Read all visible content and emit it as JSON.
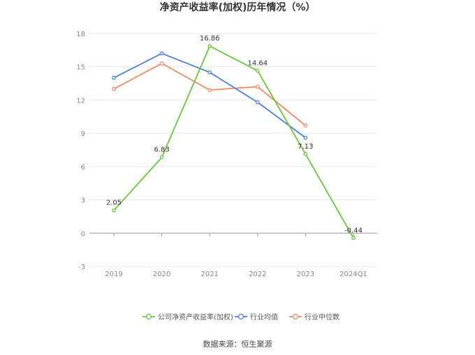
{
  "chart_data": {
    "type": "line",
    "title": "净资产收益率(加权)历年情况（%）",
    "categories": [
      "2019",
      "2020",
      "2021",
      "2022",
      "2023",
      "2024Q1"
    ],
    "y_ticks": [
      18,
      15,
      12,
      9,
      6,
      3,
      0,
      -3
    ],
    "ylim": [
      -3,
      18
    ],
    "grid": true,
    "legend_position": "bottom",
    "series": [
      {
        "name": "公司净资产收益率(加权)",
        "color": "#6cc63a",
        "values": [
          2.05,
          6.83,
          16.86,
          14.64,
          7.13,
          -0.44
        ],
        "labels": [
          "2.05",
          "6.83",
          "16.86",
          "14.64",
          "7.13",
          "-0.44"
        ]
      },
      {
        "name": "行业均值",
        "color": "#4a7fe0",
        "values": [
          14.0,
          16.2,
          14.5,
          11.8,
          8.6,
          null
        ]
      },
      {
        "name": "行业中位数",
        "color": "#f28a62",
        "values": [
          13.0,
          15.3,
          12.9,
          13.2,
          9.7,
          null
        ]
      }
    ],
    "source": "数据来源：恒生聚源"
  }
}
